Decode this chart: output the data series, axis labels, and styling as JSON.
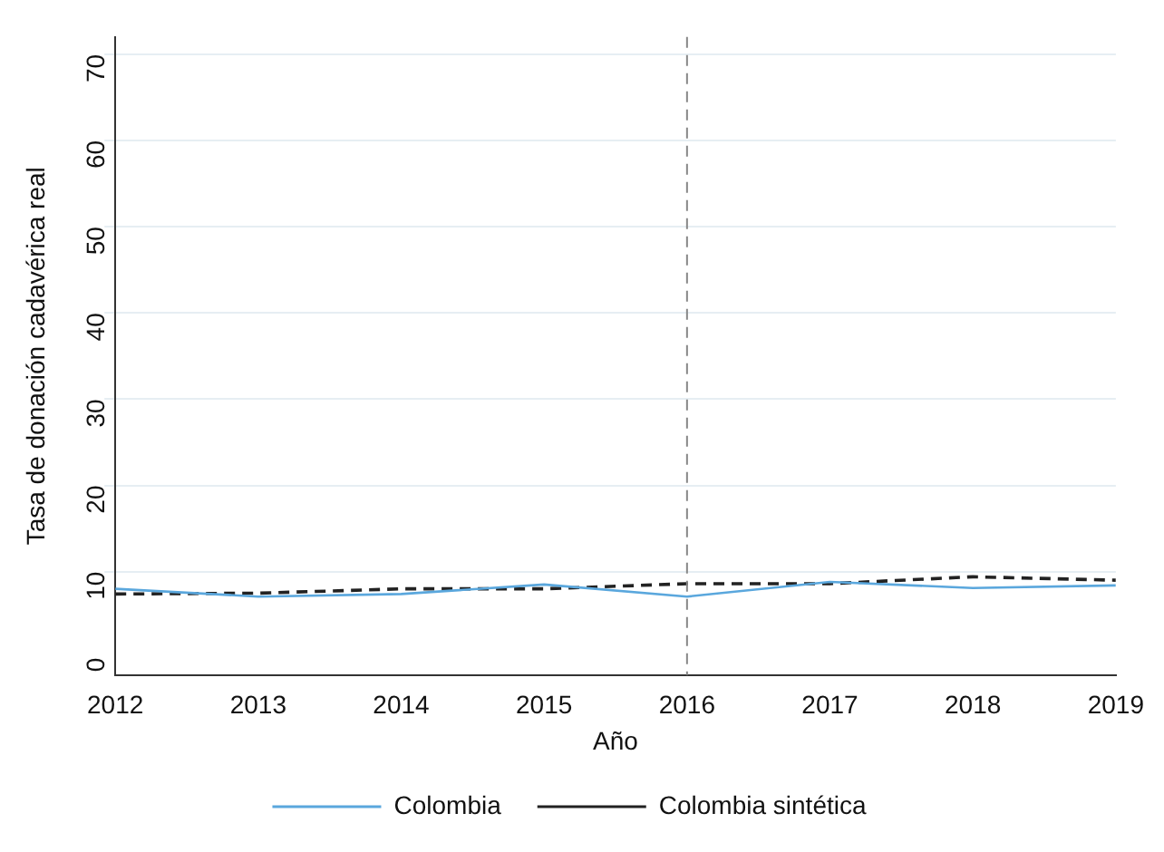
{
  "chart_data": {
    "type": "line",
    "xlabel": "Año",
    "ylabel": "Tasa de donación cadavérica real",
    "x": [
      2012,
      2013,
      2014,
      2015,
      2016,
      2017,
      2018,
      2019
    ],
    "series": [
      {
        "name": "Colombia",
        "color": "#5aa7dd",
        "values": [
          8.0,
          7.1,
          7.4,
          8.5,
          7.1,
          8.8,
          8.1,
          8.4
        ],
        "line_style": "solid"
      },
      {
        "name": "Colombia sintética",
        "color": "#222222",
        "values": [
          7.4,
          7.5,
          8.0,
          8.0,
          8.6,
          8.6,
          9.4,
          9.0
        ],
        "line_style": "dashed"
      }
    ],
    "xlim": [
      2012,
      2019
    ],
    "xticks": [
      2012,
      2013,
      2014,
      2015,
      2016,
      2017,
      2018,
      2019
    ],
    "ylim": [
      -2,
      72
    ],
    "yticks": [
      0,
      10,
      20,
      30,
      40,
      50,
      60,
      70
    ],
    "grid": "y",
    "legend": "bottom",
    "marker": "none",
    "ref_lines": [
      {
        "axis": "x",
        "value": 2016,
        "color": "#888888",
        "line_style": "dashed"
      }
    ]
  }
}
